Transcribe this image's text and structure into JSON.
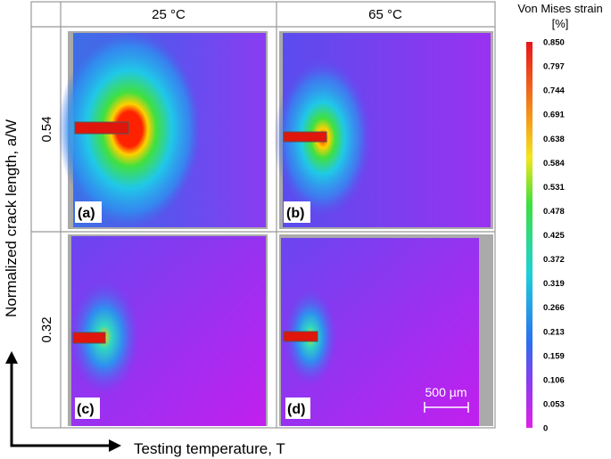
{
  "columns": [
    "25 °C",
    "65 °C"
  ],
  "rows": [
    "0.54",
    "0.32"
  ],
  "panels": [
    "(a)",
    "(b)",
    "(c)",
    "(d)"
  ],
  "y_axis_label": "Normalized crack length, a/W",
  "x_axis_label": "Testing temperature, T",
  "colorbar": {
    "title": "Von Mises strain",
    "unit": "[%]",
    "ticks": [
      "0.850",
      "0.797",
      "0.744",
      "0.691",
      "0.638",
      "0.584",
      "0.531",
      "0.478",
      "0.425",
      "0.372",
      "0.319",
      "0.266",
      "0.213",
      "0.159",
      "0.106",
      "0.053",
      "0"
    ]
  },
  "scale_bar": "500 µm"
}
